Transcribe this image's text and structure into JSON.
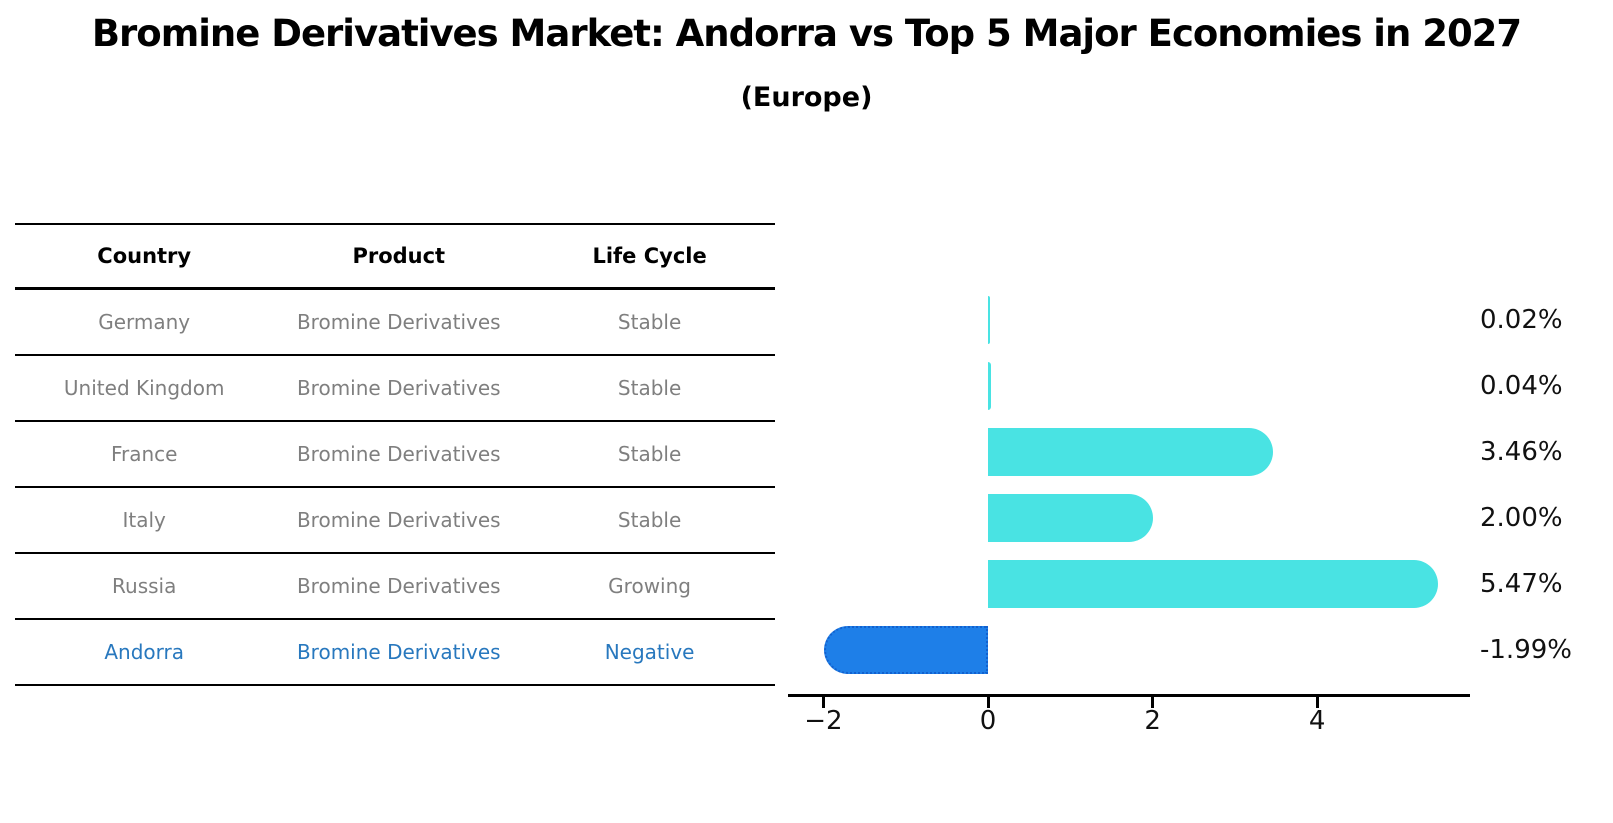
{
  "title": "Bromine Derivatives Market: Andorra vs Top 5 Major Economies in 2027",
  "subtitle": "(Europe)",
  "table": {
    "headers": [
      "Country",
      "Product",
      "Life Cycle"
    ],
    "rows": [
      {
        "country": "Germany",
        "product": "Bromine Derivatives",
        "life_cycle": "Stable",
        "highlight": false
      },
      {
        "country": "United Kingdom",
        "product": "Bromine Derivatives",
        "life_cycle": "Stable",
        "highlight": false
      },
      {
        "country": "France",
        "product": "Bromine Derivatives",
        "life_cycle": "Stable",
        "highlight": false
      },
      {
        "country": "Italy",
        "product": "Bromine Derivatives",
        "life_cycle": "Stable",
        "highlight": false
      },
      {
        "country": "Russia",
        "product": "Bromine Derivatives",
        "life_cycle": "Growing",
        "highlight": false
      },
      {
        "country": "Andorra",
        "product": "Bromine Derivatives",
        "life_cycle": "Negative",
        "highlight": true
      }
    ]
  },
  "chart_data": {
    "type": "bar",
    "orientation": "horizontal",
    "title": "Bromine Derivatives Market: Andorra vs Top 5 Major Economies in 2027 (Europe)",
    "categories": [
      "Germany",
      "United Kingdom",
      "France",
      "Italy",
      "Russia",
      "Andorra"
    ],
    "values": [
      0.02,
      0.04,
      3.46,
      2.0,
      5.47,
      -1.99
    ],
    "value_labels": [
      "0.02%",
      "0.04%",
      "3.46%",
      "2.00%",
      "5.47%",
      "-1.99%"
    ],
    "xticks": [
      -2,
      0,
      2,
      4
    ],
    "xtick_labels": [
      "−2",
      "0",
      "2",
      "4"
    ],
    "xlim": [
      -2.43,
      5.86
    ],
    "xlabel": "",
    "ylabel": "",
    "grid": false,
    "legend": "none",
    "colors": {
      "bar_positive": "#49e3e3",
      "bar_negative": "#1e7fe8",
      "negative_bar_border": "#1261cf",
      "highlight_text": "#2878be",
      "table_text": "#7f7f7f"
    }
  }
}
